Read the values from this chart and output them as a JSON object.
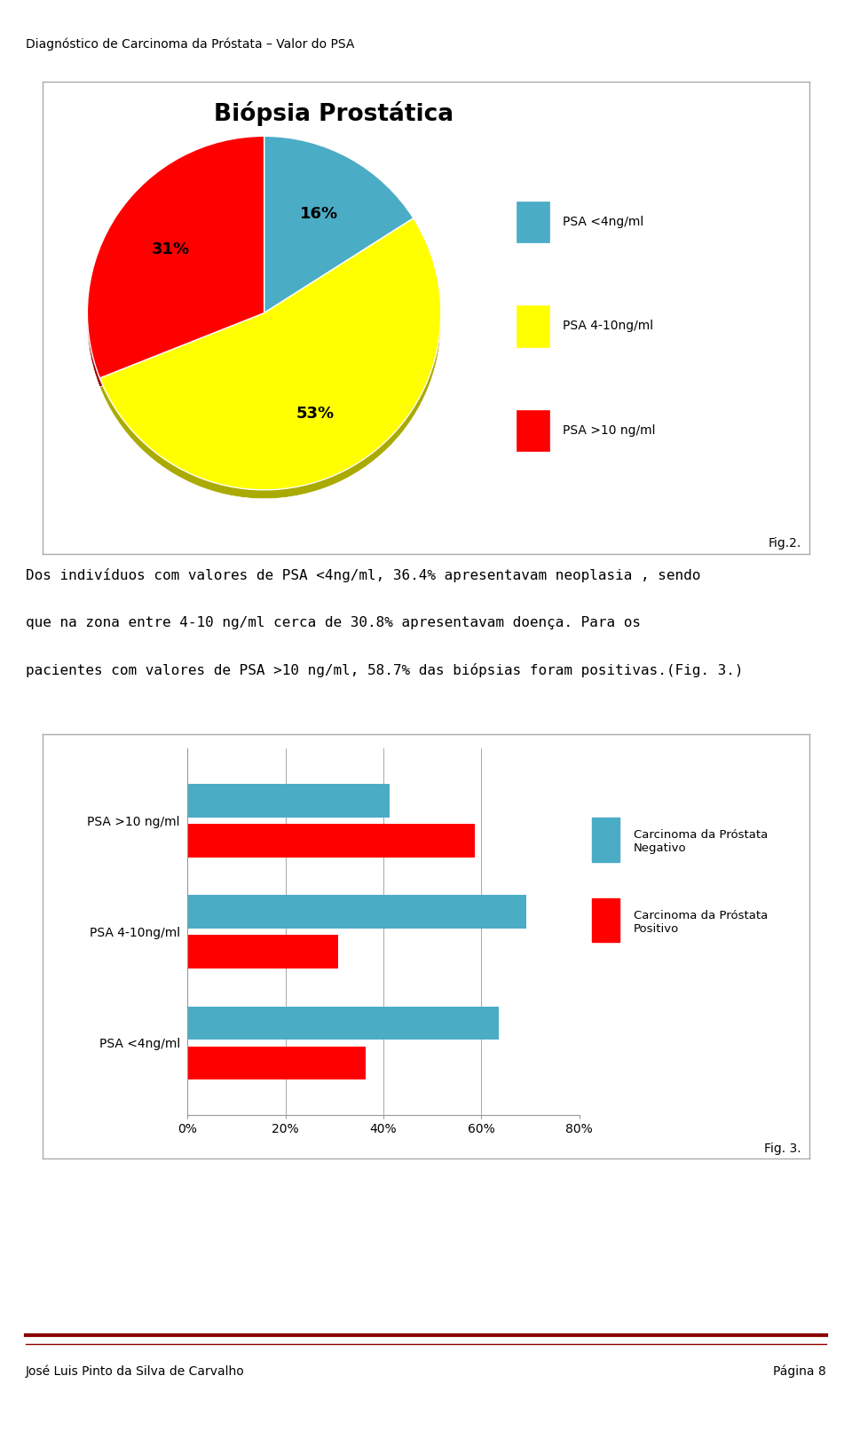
{
  "page_title": "Diagnóstico de Carcinoma da Próstata – Valor do PSA",
  "page_title_fontsize": 10,
  "pie_title": "Biópsia Prostática",
  "pie_values": [
    16,
    53,
    31
  ],
  "pie_labels": [
    "16%",
    "53%",
    "31%"
  ],
  "pie_colors": [
    "#4BACC6",
    "#FFFF00",
    "#FF0000"
  ],
  "pie_shadow_colors": [
    "#2B6C86",
    "#AAAA00",
    "#990000"
  ],
  "pie_legend_labels": [
    "PSA <4ng/ml",
    "PSA 4-10ng/ml",
    "PSA >10 ng/ml"
  ],
  "pie_legend_colors": [
    "#4BACC6",
    "#FFFF00",
    "#FF0000"
  ],
  "fig2_label": "Fig.2.",
  "body_text_line1": "Dos indivíduos com valores de PSA <4ng/ml, 36.4% apresentavam neoplasia , sendo",
  "body_text_line2": "que na zona entre 4-10 ng/ml cerca de 30.8% apresentavam doença. Para os",
  "body_text_line3": "pacientes com valores de PSA >10 ng/ml, 58.7% das biópsias foram positivas.(Fig. 3.)",
  "body_fontsize": 11.5,
  "bar_categories": [
    "PSA >10 ng/ml",
    "PSA 4-10ng/ml",
    "PSA <4ng/ml"
  ],
  "bar_negativo": [
    41.3,
    69.2,
    63.6
  ],
  "bar_positivo": [
    58.7,
    30.8,
    36.4
  ],
  "bar_color_negativo": "#4BACC6",
  "bar_color_positivo": "#FF0000",
  "bar_legend_negativo": "Carcinoma da Próstata\nNegativo",
  "bar_legend_positivo": "Carcinoma da Próstata\nPositivo",
  "bar_xlim": [
    0,
    80
  ],
  "bar_xticks": [
    0,
    20,
    40,
    60,
    80
  ],
  "bar_xtick_labels": [
    "0%",
    "20%",
    "40%",
    "60%",
    "80%"
  ],
  "fig3_label": "Fig. 3.",
  "footer_left": "José Luis Pinto da Silva de Carvalho",
  "footer_right": "Página 8",
  "footer_fontsize": 10,
  "bg_color": "#FFFFFF",
  "box_edge_color": "#AAAAAA",
  "footer_line_color": "#8B0000"
}
